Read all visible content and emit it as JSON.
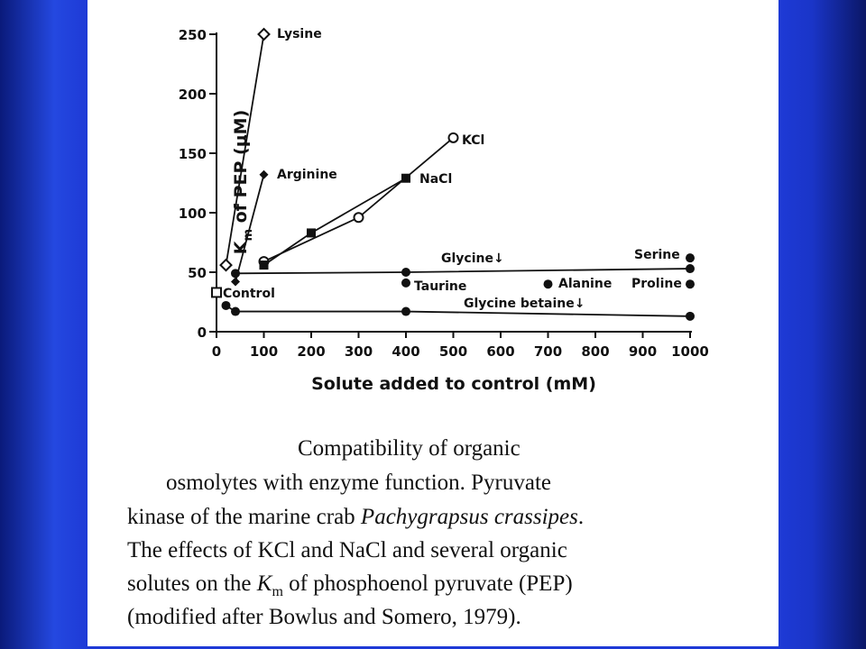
{
  "chart_data": {
    "type": "scatter",
    "xlabel": "Solute added to control (mM)",
    "ylabel_main": "K",
    "ylabel_sub": "m",
    "ylabel_rest": " of PEP (μM)",
    "xlim": [
      0,
      1000
    ],
    "ylim": [
      0,
      250
    ],
    "xticks": [
      0,
      100,
      200,
      300,
      400,
      500,
      600,
      700,
      800,
      900,
      1000
    ],
    "yticks": [
      0,
      50,
      100,
      150,
      200,
      250
    ],
    "grid": false,
    "series": [
      {
        "name": "Lysine",
        "marker": "diamond-open",
        "line": true,
        "x": [
          20,
          100
        ],
        "y": [
          56,
          250
        ]
      },
      {
        "name": "Arginine",
        "marker": "diamond-filled",
        "line": true,
        "x": [
          40,
          100
        ],
        "y": [
          42,
          132
        ]
      },
      {
        "name": "KCl",
        "marker": "circle-open",
        "line": true,
        "x": [
          100,
          300,
          500
        ],
        "y": [
          59,
          96,
          163
        ]
      },
      {
        "name": "NaCl",
        "marker": "square-filled",
        "line": true,
        "x": [
          100,
          200,
          400
        ],
        "y": [
          56,
          83,
          129
        ]
      },
      {
        "name": "Glycine↓",
        "marker": "circle-filled",
        "line": true,
        "x": [
          40,
          400,
          1000
        ],
        "y": [
          49,
          50,
          53
        ]
      },
      {
        "name": "Serine",
        "marker": "circle-filled",
        "line": false,
        "x": [
          1000
        ],
        "y": [
          62
        ]
      },
      {
        "name": "Taurine",
        "marker": "circle-filled",
        "line": false,
        "x": [
          400
        ],
        "y": [
          41
        ]
      },
      {
        "name": "Alanine",
        "marker": "circle-filled",
        "line": false,
        "x": [
          700
        ],
        "y": [
          40
        ]
      },
      {
        "name": "Proline",
        "marker": "circle-filled",
        "line": false,
        "x": [
          1000
        ],
        "y": [
          40
        ]
      },
      {
        "name": "Glycine betaine↓",
        "marker": "circle-filled",
        "line": true,
        "x": [
          20,
          40,
          400,
          1000
        ],
        "y": [
          22,
          17,
          17,
          13
        ]
      },
      {
        "name": "Control",
        "marker": "square-open",
        "line": false,
        "x": [
          0
        ],
        "y": [
          33
        ]
      }
    ]
  },
  "caption": {
    "line1": "Compatibility   of   organic",
    "line2": "osmolytes with    enzyme    function. Pyruvate",
    "line3a": "kinase of the marine crab ",
    "line3b": "Pachygrapsus crassipes",
    "line3c": ".",
    "line4": "The effects of KCl and NaCl and several organic",
    "line5a": "solutes on the ",
    "line5b": "K",
    "line5c": "m",
    "line5d": "  of phosphoenol pyruvate (PEP)",
    "line6": "(modified after Bowlus and Somero, 1979)."
  }
}
